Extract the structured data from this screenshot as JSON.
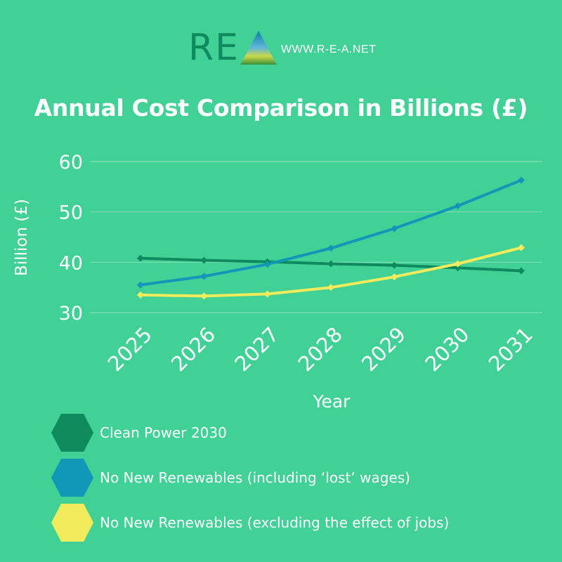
{
  "header": {
    "logo_text": "RE",
    "url": "WWW.R-E-A.NET"
  },
  "chart_data": {
    "type": "line",
    "title": "Annual Cost Comparison in Billions (£)",
    "xlabel": "Year",
    "ylabel": "Billion (£)",
    "categories": [
      "2025",
      "2026",
      "2027",
      "2028",
      "2029",
      "2030",
      "2031"
    ],
    "ylim": [
      30,
      60
    ],
    "yticks": [
      "30",
      "40",
      "50",
      "60"
    ],
    "grid": true,
    "series": [
      {
        "name": "Clean Power 2030",
        "color": "#0e8a5e",
        "values": [
          40.8,
          40.4,
          40.1,
          39.7,
          39.4,
          38.9,
          38.3
        ]
      },
      {
        "name": "No New Renewables (including ‘lost’ wages)",
        "color": "#1198b8",
        "values": [
          35.5,
          37.2,
          39.6,
          42.8,
          46.7,
          51.2,
          56.3
        ]
      },
      {
        "name": "No New Renewables (excluding the effect of jobs)",
        "color": "#f2ec5c",
        "values": [
          33.5,
          33.3,
          33.7,
          35.0,
          37.1,
          39.7,
          42.9
        ]
      }
    ]
  }
}
